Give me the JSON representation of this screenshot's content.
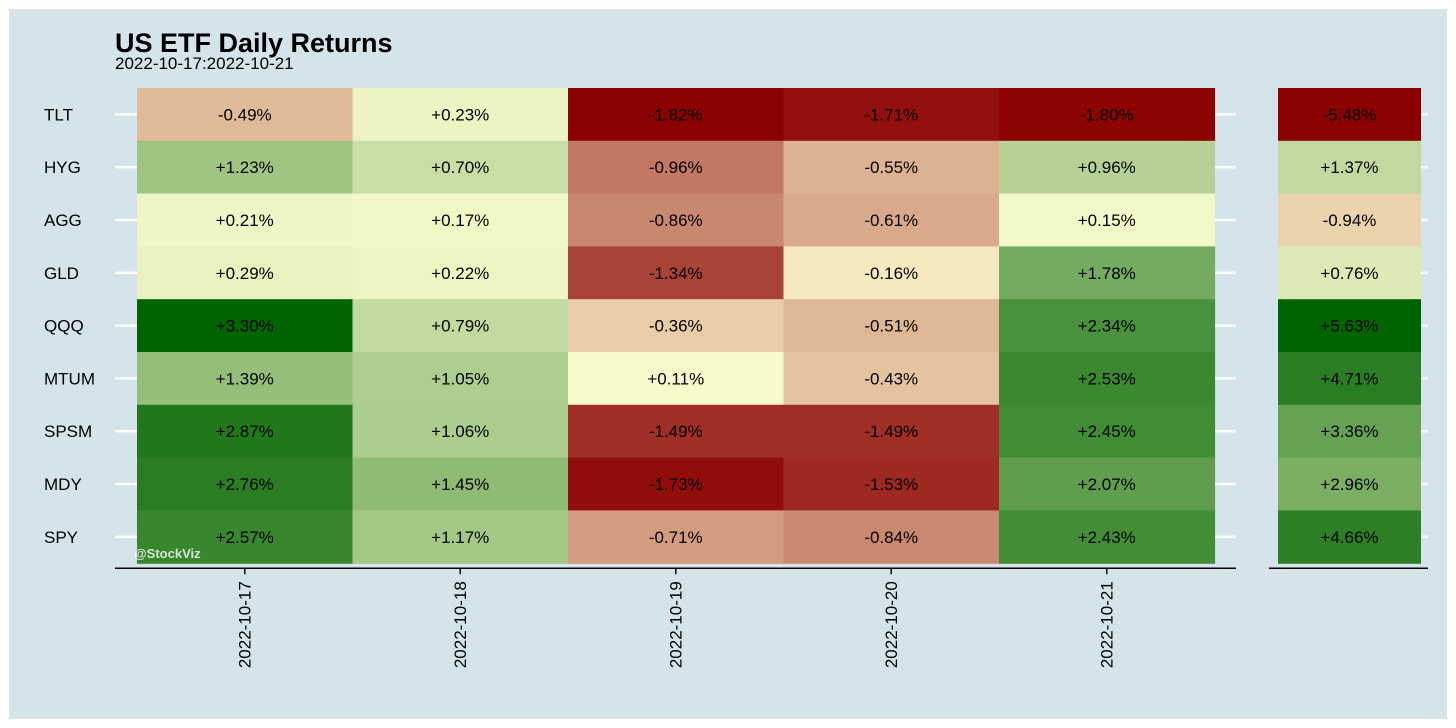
{
  "chart_data": {
    "type": "heatmap",
    "title": "US ETF Daily Returns",
    "subtitle": "2022-10-17:2022-10-21",
    "x_categories": [
      "2022-10-17",
      "2022-10-18",
      "2022-10-19",
      "2022-10-20",
      "2022-10-21"
    ],
    "y_categories": [
      "TLT",
      "HYG",
      "AGG",
      "GLD",
      "QQQ",
      "MTUM",
      "SPSM",
      "MDY",
      "SPY"
    ],
    "values": [
      [
        -0.49,
        0.23,
        -1.82,
        -1.71,
        -1.8
      ],
      [
        1.23,
        0.7,
        -0.96,
        -0.55,
        0.96
      ],
      [
        0.21,
        0.17,
        -0.86,
        -0.61,
        0.15
      ],
      [
        0.29,
        0.22,
        -1.34,
        -0.16,
        1.78
      ],
      [
        3.3,
        0.79,
        -0.36,
        -0.51,
        2.34
      ],
      [
        1.39,
        1.05,
        0.11,
        -0.43,
        2.53
      ],
      [
        2.87,
        1.06,
        -1.49,
        -1.49,
        2.45
      ],
      [
        2.76,
        1.45,
        -1.73,
        -1.53,
        2.07
      ],
      [
        2.57,
        1.17,
        -0.71,
        -0.84,
        2.43
      ]
    ],
    "labels": [
      [
        "-0.49%",
        "+0.23%",
        "-1.82%",
        "-1.71%",
        "-1.80%"
      ],
      [
        "+1.23%",
        "+0.70%",
        "-0.96%",
        "-0.55%",
        "+0.96%"
      ],
      [
        "+0.21%",
        "+0.17%",
        "-0.86%",
        "-0.61%",
        "+0.15%"
      ],
      [
        "+0.29%",
        "+0.22%",
        "-1.34%",
        "-0.16%",
        "+1.78%"
      ],
      [
        "+3.30%",
        "+0.79%",
        "-0.36%",
        "-0.51%",
        "+2.34%"
      ],
      [
        "+1.39%",
        "+1.05%",
        "+0.11%",
        "-0.43%",
        "+2.53%"
      ],
      [
        "+2.87%",
        "+1.06%",
        "-1.49%",
        "-1.49%",
        "+2.45%"
      ],
      [
        "+2.76%",
        "+1.45%",
        "-1.73%",
        "-1.53%",
        "+2.07%"
      ],
      [
        "+2.57%",
        "+1.17%",
        "-0.71%",
        "-0.84%",
        "+2.43%"
      ]
    ],
    "cumulative_values": [
      -5.48,
      1.37,
      -0.94,
      0.76,
      5.63,
      4.71,
      3.36,
      2.96,
      4.66
    ],
    "cumulative_labels": [
      "-5.48%",
      "+1.37%",
      "-0.94%",
      "+0.76%",
      "+5.63%",
      "+4.71%",
      "+3.36%",
      "+2.96%",
      "+4.66%"
    ],
    "color_scale": {
      "low": "#8b0000",
      "mid": "#ffffd1",
      "high": "#006400"
    },
    "background": "#d5e4eb",
    "watermark": "@StockViz"
  }
}
